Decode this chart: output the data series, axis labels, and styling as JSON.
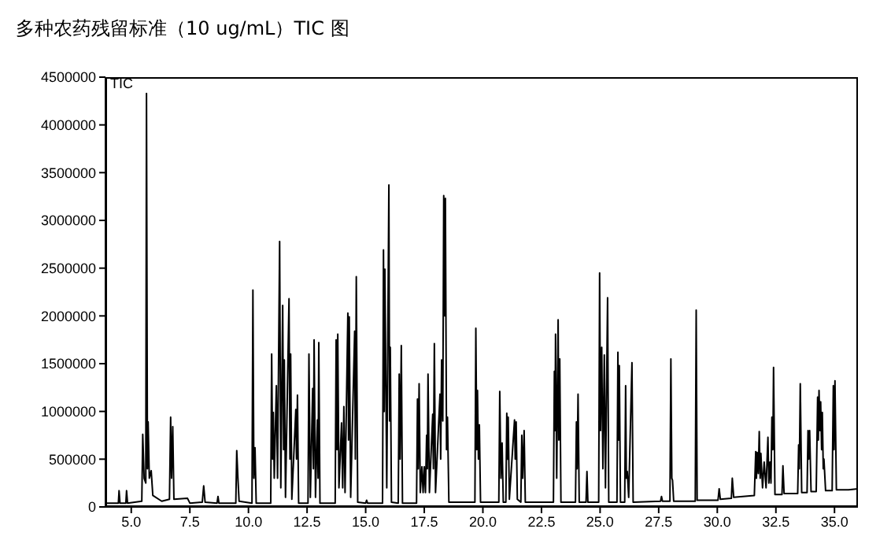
{
  "chart_data": {
    "type": "line",
    "title": "多种农药残留标准（10 ug/mL）TIC 图",
    "annotations": [
      "TIC"
    ],
    "xlim": [
      3.9,
      36
    ],
    "ylim": [
      0,
      4500000
    ],
    "xticks": [
      {
        "value": 5,
        "label": "5.0"
      },
      {
        "value": 7.5,
        "label": "7.5"
      },
      {
        "value": 10,
        "label": "10.0"
      },
      {
        "value": 12.5,
        "label": "12.5"
      },
      {
        "value": 15,
        "label": "15.0"
      },
      {
        "value": 17.5,
        "label": "17.5"
      },
      {
        "value": 20,
        "label": "20.0"
      },
      {
        "value": 22.5,
        "label": "22.5"
      },
      {
        "value": 25,
        "label": "25.0"
      },
      {
        "value": 27.5,
        "label": "27.5"
      },
      {
        "value": 30,
        "label": "30.0"
      },
      {
        "value": 32.5,
        "label": "32.5"
      },
      {
        "value": 35,
        "label": "35.0"
      }
    ],
    "yticks": [
      0,
      500000,
      1000000,
      1500000,
      2000000,
      2500000,
      3000000,
      3500000,
      4000000,
      4500000
    ],
    "marker": "none",
    "line_style": "solid",
    "series": [
      {
        "color": "#000000",
        "x": [
          3.9,
          4.45,
          4.48,
          4.52,
          4.77,
          4.8,
          4.84,
          5.45,
          5.49,
          5.55,
          5.62,
          5.65,
          5.69,
          5.72,
          5.77,
          5.85,
          5.92,
          6.3,
          6.63,
          6.68,
          6.72,
          6.77,
          6.82,
          7.4,
          7.5,
          8.03,
          8.09,
          8.15,
          8.66,
          8.7,
          8.74,
          9.46,
          9.5,
          9.55,
          9.6,
          10.15,
          10.19,
          10.23,
          10.28,
          10.33,
          10.95,
          10.99,
          11.03,
          11.06,
          11.1,
          11.19,
          11.24,
          11.33,
          11.38,
          11.46,
          11.5,
          11.53,
          11.58,
          11.73,
          11.77,
          11.8,
          11.85,
          12.02,
          12.05,
          12.09,
          12.14,
          12.54,
          12.58,
          12.64,
          12.74,
          12.77,
          12.8,
          12.86,
          12.94,
          12.97,
          13.0,
          13.05,
          13.7,
          13.74,
          13.78,
          13.81,
          13.86,
          13.97,
          14.02,
          14.07,
          14.12,
          14.24,
          14.27,
          14.3,
          14.36,
          14.53,
          14.56,
          14.6,
          14.66,
          15.0,
          15.04,
          15.08,
          15.72,
          15.76,
          15.79,
          15.82,
          15.9,
          15.99,
          16.02,
          16.05,
          16.1,
          16.39,
          16.43,
          16.47,
          16.52,
          16.57,
          17.17,
          17.21,
          17.24,
          17.28,
          17.33,
          17.4,
          17.45,
          17.5,
          17.55,
          17.6,
          17.63,
          17.66,
          17.72,
          17.86,
          17.89,
          17.93,
          17.98,
          18.17,
          18.2,
          18.24,
          18.29,
          18.33,
          18.37,
          18.4,
          18.45,
          18.49,
          18.55,
          19.66,
          19.7,
          19.74,
          19.77,
          19.81,
          19.85,
          19.9,
          20.68,
          20.72,
          20.77,
          20.82,
          20.87,
          20.98,
          21.02,
          21.05,
          21.08,
          21.13,
          21.35,
          21.38,
          21.42,
          21.47,
          21.62,
          21.66,
          21.7,
          21.76,
          21.81,
          23.01,
          23.05,
          23.08,
          23.1,
          23.15,
          23.21,
          23.24,
          23.28,
          23.33,
          23.95,
          23.99,
          24.02,
          24.06,
          24.11,
          24.4,
          24.44,
          24.48,
          24.94,
          24.98,
          25.02,
          25.07,
          25.12,
          25.18,
          25.23,
          25.32,
          25.37,
          25.72,
          25.76,
          25.79,
          25.82,
          25.87,
          26.05,
          26.09,
          26.12,
          26.16,
          26.22,
          26.36,
          26.41,
          27.58,
          27.62,
          27.66,
          27.98,
          28.02,
          28.06,
          28.09,
          28.14,
          29.06,
          29.1,
          29.14,
          30.03,
          30.08,
          30.13,
          30.6,
          30.64,
          30.7,
          31.58,
          31.64,
          31.67,
          31.7,
          31.75,
          31.79,
          31.83,
          31.86,
          31.93,
          32.0,
          32.08,
          32.16,
          32.2,
          32.25,
          32.29,
          32.33,
          32.37,
          32.4,
          32.46,
          32.76,
          32.8,
          32.85,
          33.43,
          33.47,
          33.5,
          33.54,
          33.6,
          33.83,
          33.87,
          33.9,
          33.94,
          34.0,
          34.22,
          34.28,
          34.31,
          34.34,
          34.38,
          34.41,
          34.45,
          34.48,
          34.52,
          34.55,
          34.62,
          34.9,
          34.95,
          34.98,
          35.02,
          35.08,
          35.6,
          36.0
        ],
        "values": [
          40000,
          40000,
          170000,
          40000,
          40000,
          170000,
          40000,
          60000,
          760000,
          300000,
          250000,
          4330000,
          400000,
          890000,
          300000,
          380000,
          120000,
          60000,
          80000,
          940000,
          300000,
          840000,
          80000,
          90000,
          40000,
          50000,
          220000,
          50000,
          40000,
          110000,
          40000,
          40000,
          590000,
          300000,
          60000,
          40000,
          2270000,
          300000,
          620000,
          40000,
          40000,
          1600000,
          500000,
          990000,
          300000,
          1270000,
          300000,
          2780000,
          200000,
          2110000,
          600000,
          1540000,
          100000,
          2180000,
          500000,
          1600000,
          80000,
          1020000,
          500000,
          1170000,
          40000,
          40000,
          1600000,
          100000,
          1240000,
          400000,
          1750000,
          100000,
          910000,
          300000,
          1720000,
          40000,
          40000,
          1750000,
          600000,
          1810000,
          200000,
          880000,
          200000,
          1050000,
          150000,
          2030000,
          700000,
          1990000,
          100000,
          1840000,
          500000,
          2410000,
          50000,
          40000,
          70000,
          40000,
          40000,
          2690000,
          1000000,
          2490000,
          200000,
          3370000,
          900000,
          1670000,
          50000,
          40000,
          1390000,
          500000,
          1690000,
          40000,
          40000,
          1130000,
          400000,
          1290000,
          150000,
          420000,
          150000,
          420000,
          150000,
          750000,
          400000,
          1390000,
          150000,
          970000,
          400000,
          1710000,
          150000,
          1180000,
          500000,
          1540000,
          900000,
          3260000,
          2000000,
          3230000,
          600000,
          940000,
          50000,
          50000,
          1870000,
          600000,
          1220000,
          500000,
          860000,
          50000,
          50000,
          1210000,
          300000,
          670000,
          50000,
          50000,
          980000,
          500000,
          940000,
          80000,
          910000,
          500000,
          890000,
          80000,
          50000,
          750000,
          300000,
          800000,
          50000,
          50000,
          1420000,
          800000,
          1810000,
          300000,
          1960000,
          700000,
          1550000,
          50000,
          50000,
          890000,
          400000,
          1180000,
          50000,
          50000,
          370000,
          50000,
          50000,
          2450000,
          800000,
          1670000,
          400000,
          1590000,
          200000,
          2190000,
          50000,
          50000,
          1620000,
          700000,
          1480000,
          50000,
          50000,
          1270000,
          300000,
          370000,
          100000,
          1510000,
          50000,
          60000,
          110000,
          60000,
          60000,
          1550000,
          300000,
          280000,
          60000,
          60000,
          2060000,
          70000,
          70000,
          190000,
          80000,
          90000,
          300000,
          100000,
          120000,
          580000,
          300000,
          570000,
          350000,
          790000,
          300000,
          560000,
          200000,
          470000,
          200000,
          730000,
          250000,
          470000,
          250000,
          940000,
          600000,
          1460000,
          130000,
          130000,
          430000,
          140000,
          140000,
          650000,
          400000,
          1290000,
          150000,
          150000,
          800000,
          500000,
          800000,
          160000,
          160000,
          1150000,
          700000,
          1220000,
          800000,
          1100000,
          600000,
          990000,
          400000,
          500000,
          170000,
          170000,
          1270000,
          600000,
          1320000,
          180000,
          180000,
          190000
        ]
      }
    ]
  }
}
